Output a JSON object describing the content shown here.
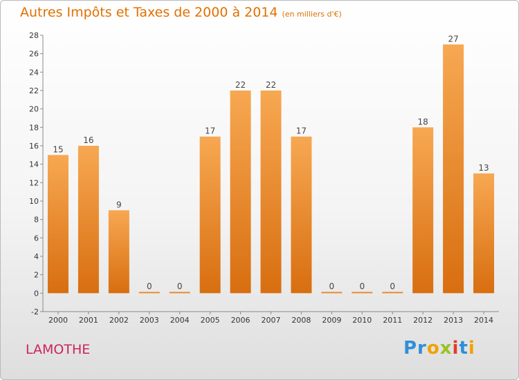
{
  "chart_data": {
    "type": "bar",
    "title": "Autres Impôts et Taxes de 2000 à 2014",
    "unit_note": "(en milliers d'€)",
    "categories": [
      "2000",
      "2001",
      "2002",
      "2003",
      "2004",
      "2005",
      "2006",
      "2007",
      "2008",
      "2009",
      "2010",
      "2011",
      "2012",
      "2013",
      "2014"
    ],
    "values": [
      15,
      16,
      9,
      0,
      0,
      17,
      22,
      22,
      17,
      0,
      0,
      0,
      18,
      27,
      13
    ],
    "ylim": [
      -2,
      28
    ],
    "yticks": [
      -2,
      0,
      2,
      4,
      6,
      8,
      10,
      12,
      14,
      16,
      18,
      20,
      22,
      24,
      26,
      28
    ],
    "grid": false,
    "bar_color": "#f29a3c"
  },
  "commune": "LAMOTHE",
  "logo": [
    "Pr",
    "o",
    "x",
    "i",
    "t",
    "i"
  ],
  "colors": {
    "title": "#e07000",
    "commune": "#cc2458"
  }
}
